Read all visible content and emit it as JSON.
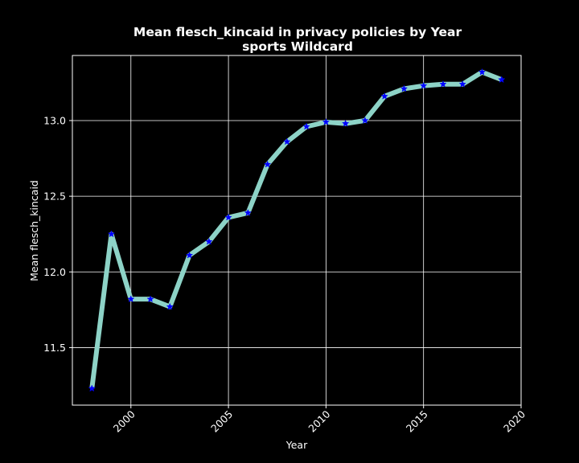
{
  "chart_data": {
    "type": "line",
    "title": "Mean flesch_kincaid in privacy policies by Year",
    "subtitle": "sports Wildcard",
    "xlabel": "Year",
    "ylabel": "Mean flesch_kincaid",
    "xlim": [
      1997,
      2020
    ],
    "ylim": [
      11.12,
      13.43
    ],
    "x_ticks": [
      2000,
      2005,
      2010,
      2015,
      2020
    ],
    "y_ticks": [
      11.5,
      12.0,
      12.5,
      13.0
    ],
    "x_tick_labels": [
      "2000",
      "2005",
      "2010",
      "2015",
      "2020"
    ],
    "y_tick_labels": [
      "11.5",
      "12.0",
      "12.5",
      "13.0"
    ],
    "grid": true,
    "legend": "none",
    "line_color": "#8dd3c7",
    "marker_color": "#0000ff",
    "marker": "star",
    "series": [
      {
        "x": [
          1998,
          1999,
          2000,
          2001,
          2002,
          2003,
          2004,
          2005,
          2006,
          2007,
          2008,
          2009,
          2010,
          2011,
          2012,
          2013,
          2014,
          2015,
          2016,
          2017,
          2018,
          2019
        ],
        "values": [
          11.23,
          12.25,
          11.82,
          11.82,
          11.77,
          12.11,
          12.2,
          12.36,
          12.39,
          12.71,
          12.86,
          12.96,
          12.99,
          12.98,
          13.0,
          13.16,
          13.21,
          13.23,
          13.24,
          13.24,
          13.32,
          13.27
        ]
      }
    ]
  }
}
